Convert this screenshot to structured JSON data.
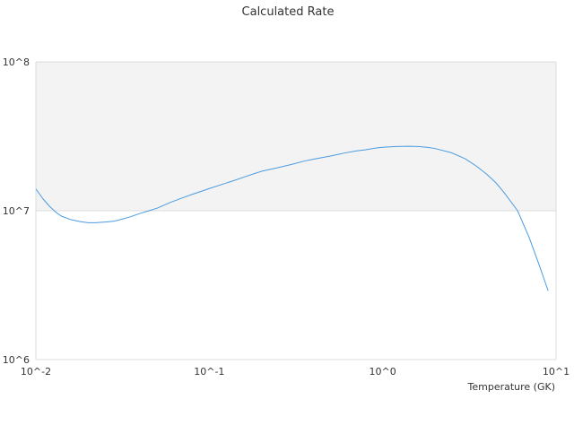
{
  "chart_data": {
    "type": "line",
    "title": "Calculated Rate",
    "xlabel": "Temperature (GK)",
    "ylabel": "",
    "x_scale": "log",
    "y_scale": "log",
    "xlim": [
      0.01,
      10
    ],
    "ylim": [
      1000000,
      100000000
    ],
    "x_ticks": [
      0.01,
      0.1,
      1,
      10
    ],
    "x_tick_labels": [
      "10^-2",
      "10^-1",
      "10^0",
      "10^1"
    ],
    "y_ticks": [
      1000000,
      10000000,
      100000000
    ],
    "y_tick_labels": [
      "10^6",
      "10^7",
      "10^8"
    ],
    "grid": true,
    "legend": "none",
    "band_colors": [
      "#f3f3f3",
      "#ffffff"
    ],
    "series": [
      {
        "color": "#4a9be0",
        "x": [
          0.01,
          0.011,
          0.012,
          0.013,
          0.014,
          0.016,
          0.018,
          0.02,
          0.022,
          0.025,
          0.028,
          0.03,
          0.035,
          0.04,
          0.045,
          0.05,
          0.06,
          0.07,
          0.08,
          0.09,
          0.1,
          0.12,
          0.14,
          0.16,
          0.18,
          0.2,
          0.25,
          0.3,
          0.35,
          0.4,
          0.5,
          0.6,
          0.7,
          0.8,
          0.9,
          1.0,
          1.2,
          1.4,
          1.6,
          1.8,
          2.0,
          2.5,
          3.0,
          3.5,
          4.0,
          4.5,
          5.0,
          6.0,
          7.0,
          8.0,
          9.0
        ],
        "y": [
          14000000,
          12000000,
          10700000,
          9800000,
          9200000,
          8700000,
          8450000,
          8300000,
          8300000,
          8400000,
          8500000,
          8650000,
          9100000,
          9600000,
          10000000,
          10400000,
          11400000,
          12200000,
          12900000,
          13500000,
          14100000,
          15100000,
          16000000,
          16900000,
          17700000,
          18400000,
          19500000,
          20500000,
          21500000,
          22200000,
          23300000,
          24400000,
          25200000,
          25700000,
          26300000,
          26700000,
          27000000,
          27100000,
          27000000,
          26700000,
          26200000,
          24500000,
          22300000,
          19800000,
          17500000,
          15400000,
          13300000,
          10000000,
          6600000,
          4300000,
          2900000
        ]
      }
    ]
  }
}
